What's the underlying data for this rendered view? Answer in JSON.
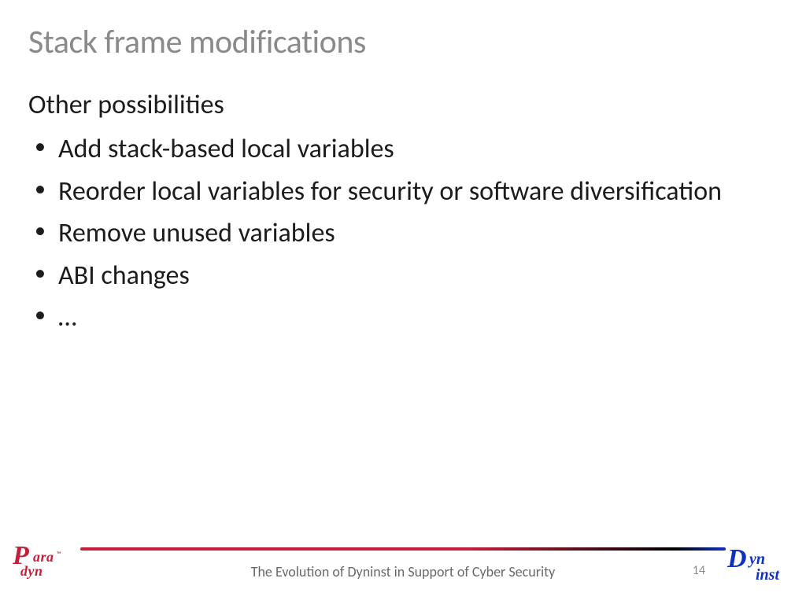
{
  "title": "Stack frame modifications",
  "subhead": "Other possibilities",
  "bullets": [
    "Add stack-based local variables",
    "Reorder local variables for security or software diversification",
    "Remove unused variables",
    "ABI changes",
    "…"
  ],
  "footer": {
    "caption": "The Evolution of Dyninst in Support of Cyber Security",
    "page": "14"
  },
  "logos": {
    "left": {
      "big": "P",
      "top": "ara",
      "bottom": "dyn",
      "tm": "™"
    },
    "right": {
      "big": "D",
      "top": "yn",
      "bottom": "inst"
    }
  },
  "colors": {
    "title": "#8a8a8a",
    "body": "#1c1c1c",
    "rule_left": "#c41e3a",
    "rule_right": "#1030c0",
    "footer_text": "#6a6a6a"
  },
  "fonts": {
    "title_size_pt": 32,
    "body_size_pt": 26,
    "footer_size_pt": 14
  }
}
